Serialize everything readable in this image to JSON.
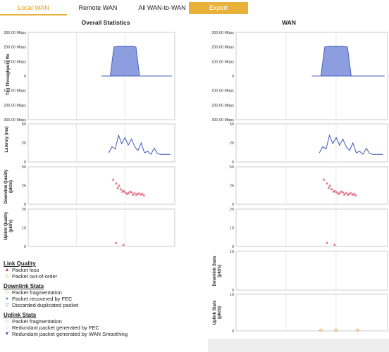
{
  "tabs": [
    {
      "label": "Local WAN",
      "active": true
    },
    {
      "label": "Remote WAN",
      "active": false
    },
    {
      "label": "All WAN-to-WAN",
      "active": false
    },
    {
      "label": "Export",
      "active": false
    }
  ],
  "charts": {
    "left_title": "Overall Statistics",
    "right_title": "WAN",
    "throughput_label": "Tx ) Throughput ( Rx",
    "latency_label": "Latency (ms)",
    "downlink_quality_label": "Downlink Quality (pkt/s)",
    "uplink_quality_label": "Uplink Quality (pkt/s)",
    "downlink_stats_label": "Downlink Stats (pkt/s)",
    "uplink_stats_label": "Uplink Stats (pkt/s)",
    "throughput_ticks": [
      "300.00 Mbps",
      "200.00 Mbps",
      "100.00 Mbps",
      "0",
      "100.00 Mbps",
      "200.00 Mbps",
      "300.00 Mbps"
    ],
    "latency_ticks": [
      "50",
      "25",
      "0"
    ],
    "quality_ticks": [
      "50",
      "25",
      "0"
    ],
    "uplink_quality_ticks": [
      "20",
      "10",
      "0"
    ],
    "stats_ticks": [
      "10",
      "0"
    ]
  },
  "legend": {
    "link_quality": {
      "heading": "Link Quality",
      "items": [
        {
          "label": "Packet loss",
          "color": "#cc3344",
          "icon": "filled-triangle-icon"
        },
        {
          "label": "Packet out-of-order",
          "color": "#e8a040",
          "icon": "outline-triangle-icon"
        }
      ]
    },
    "downlink_stats": {
      "heading": "Downlink Stats",
      "items": [
        {
          "label": "Packet fragmentation",
          "color": "#e8a040",
          "icon": "outline-diamond-icon"
        },
        {
          "label": "Packet recovered by FEC",
          "color": "#4a90d9",
          "icon": "dot-icon"
        },
        {
          "label": "Discarded duplicated packet",
          "color": "#777777",
          "icon": "down-triangle-icon"
        }
      ]
    },
    "uplink_stats": {
      "heading": "Uplink Stats",
      "items": [
        {
          "label": "Packet fragmentation",
          "color": "#e8a040",
          "icon": "outline-diamond-icon"
        },
        {
          "label": "Redundant packet generated by FEC",
          "color": "#999999",
          "icon": "outline-circle-icon"
        },
        {
          "label": "Redundant packet generated by WAN Smoothing",
          "color": "#3a6a9a",
          "icon": "filled-down-triangle-icon"
        }
      ]
    }
  },
  "chart_data": [
    {
      "type": "area",
      "title": "Overall Statistics",
      "ylabel": "Tx ) Throughput ( Rx",
      "ylim": [
        -300,
        300
      ],
      "series": [
        {
          "values": [
            0,
            200,
            205,
            205,
            205,
            205,
            205,
            200,
            0
          ]
        }
      ]
    },
    {
      "type": "line",
      "ylabel": "Latency (ms)",
      "ylim": [
        0,
        50
      ],
      "series": [
        {
          "values": [
            12,
            20,
            17,
            35,
            24,
            32,
            22,
            30,
            20,
            15,
            25,
            12,
            14,
            10,
            18,
            11,
            10,
            10,
            10,
            10
          ]
        }
      ]
    },
    {
      "type": "scatter",
      "ylabel": "Downlink Quality (pkt/s)",
      "ylim": [
        0,
        50
      ],
      "series": [
        {
          "name": "Packet loss",
          "values": [
            33,
            28,
            25,
            22,
            20,
            18,
            17,
            16,
            15,
            14,
            17,
            13,
            16,
            15,
            14,
            13,
            15,
            14,
            13,
            12
          ]
        }
      ]
    },
    {
      "type": "scatter",
      "ylabel": "Uplink Quality (pkt/s)",
      "ylim": [
        0,
        20
      ],
      "series": [
        {
          "name": "Packet loss",
          "values": [
            2,
            1
          ]
        }
      ]
    }
  ]
}
